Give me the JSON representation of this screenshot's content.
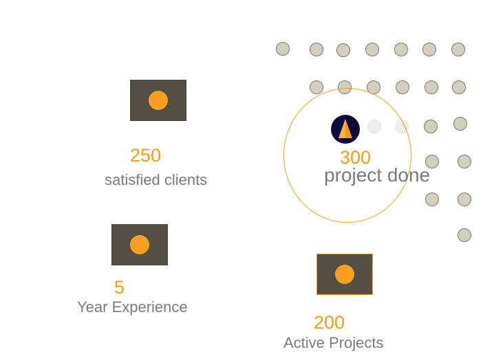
{
  "stats": {
    "satisfied": {
      "value": "250",
      "label": "satisfied clients",
      "icon": "image-placeholder-icon"
    },
    "projects_done": {
      "value": "300",
      "label": "project done",
      "icon": "navigation-arrow-icon"
    },
    "experience": {
      "value": "5",
      "label": "Year Experience",
      "icon": "image-placeholder-icon"
    },
    "active": {
      "value": "200",
      "label": "Active Projects",
      "icon": "image-placeholder-icon"
    }
  },
  "colors": {
    "accent": "#f39c12",
    "text_muted": "#7a7a7a",
    "icon_box": "#534f45",
    "dot": "#d3cfc0",
    "logo_bg": "#0a0a3a"
  }
}
